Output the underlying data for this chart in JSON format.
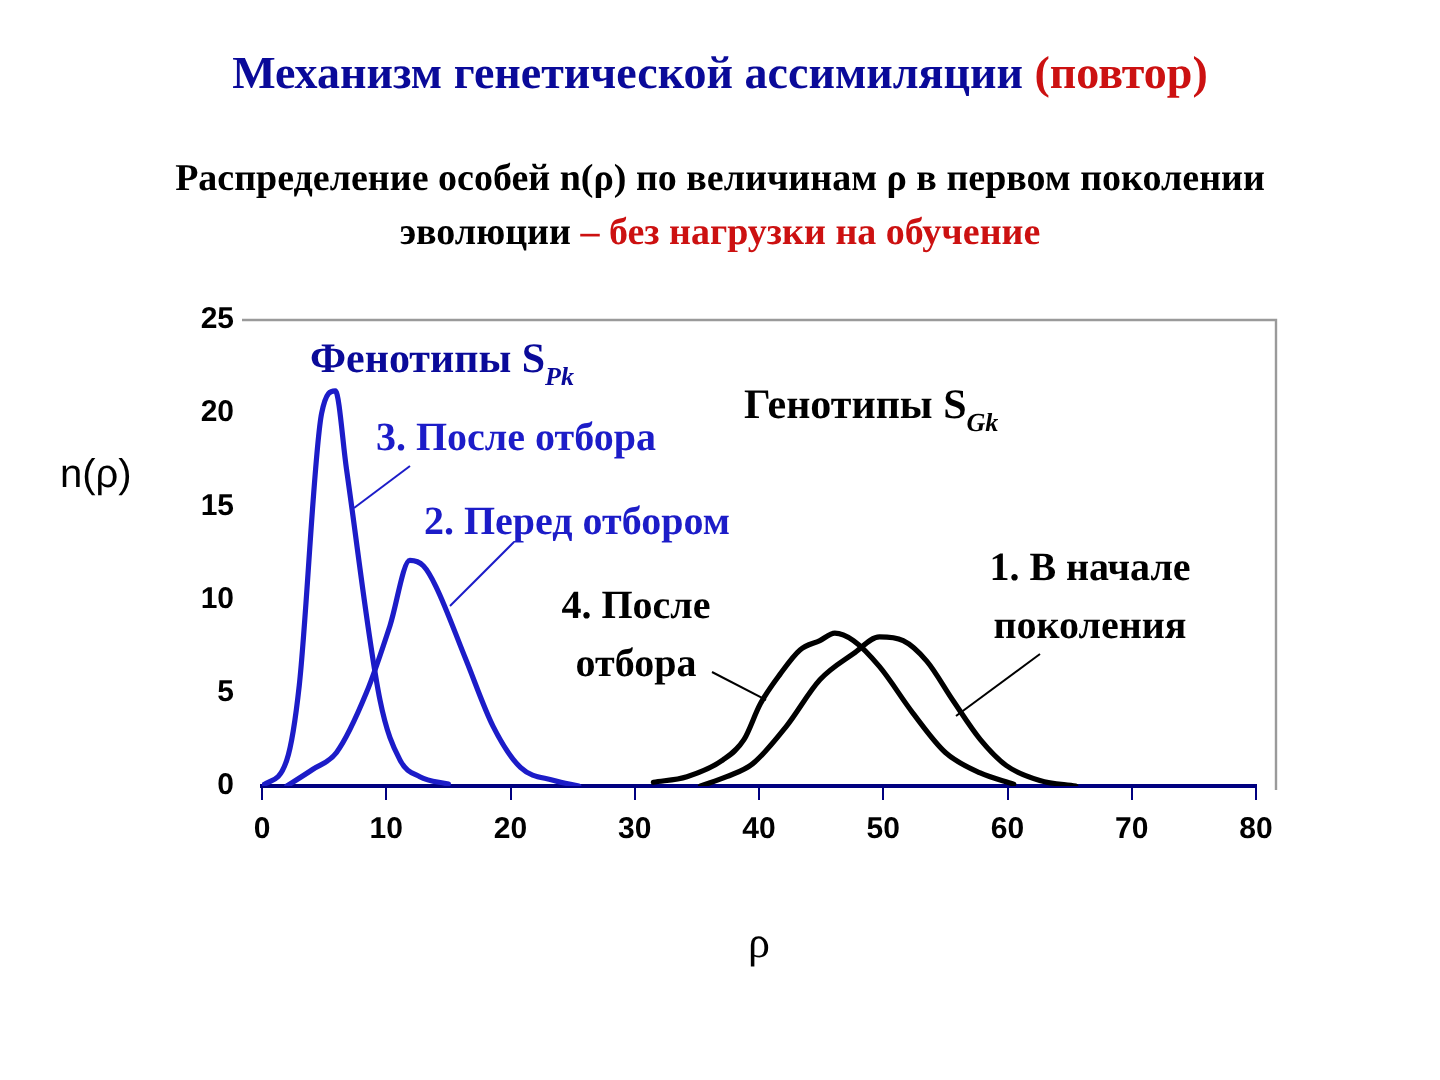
{
  "chart_data": {
    "type": "line",
    "title": "Механизм генетической ассимиляции (повтор)",
    "subtitle": "Распределение особей n(ρ) по величинам ρ в первом поколении эволюции – без нагрузки на обучение",
    "xlabel": "ρ",
    "ylabel": "n(ρ)",
    "annotations": [
      "Фенотипы S$_{Pk}$",
      "Генотипы S$_{Gk}$"
    ],
    "series": [
      {
        "name": "1. В начале поколения",
        "color": "#000000",
        "x": [
          35.3,
          37.4,
          39.5,
          42.2,
          44.9,
          47.6,
          49.7,
          51.6,
          53.5,
          55.6,
          57.8,
          59.9,
          62.6,
          65.5
        ],
        "values": [
          0,
          0.5,
          1.2,
          3.2,
          5.7,
          7.1,
          8,
          7.8,
          6.7,
          4.6,
          2.5,
          1.1,
          0.3,
          0
        ]
      },
      {
        "name": "2. Перед отбором",
        "color": "#1c1cc8",
        "x": [
          2,
          4.1,
          6,
          8.4,
          10.3,
          11.9,
          13,
          14,
          16.4,
          18.6,
          20.8,
          23.5,
          25.5
        ],
        "values": [
          0,
          0.9,
          1.8,
          5,
          8.6,
          12.1,
          11.8,
          10.7,
          6.8,
          3.2,
          1,
          0.3,
          0
        ]
      },
      {
        "name": "3. После отбора",
        "color": "#1c1cc8",
        "x": [
          0,
          2,
          3,
          4.8,
          5.9,
          6.8,
          9.5,
          11.1,
          12.7,
          15
        ],
        "values": [
          0,
          1.4,
          5.4,
          20,
          21.2,
          17,
          4.6,
          1.4,
          0.5,
          0.1
        ]
      },
      {
        "name": "4. После отбора",
        "color": "#000000",
        "x": [
          31.5,
          34.2,
          37.1,
          38.8,
          40.1,
          41.7,
          43.3,
          44.9,
          46.1,
          47.6,
          49.7,
          52.4,
          55,
          57.8,
          60.5
        ],
        "values": [
          0.2,
          0.5,
          1.4,
          2.5,
          4.4,
          6,
          7.3,
          7.8,
          8.2,
          7.8,
          6.4,
          3.9,
          1.8,
          0.7,
          0.1
        ]
      }
    ],
    "xlim": [
      0,
      80
    ],
    "xticks": [
      0,
      10,
      20,
      30,
      40,
      50,
      60,
      70,
      80
    ],
    "ylim": [
      0,
      25
    ],
    "yticks": [
      0,
      5,
      10,
      15,
      20,
      25
    ],
    "grid": false,
    "legend": false,
    "marker": "none",
    "line_style": "solid"
  }
}
